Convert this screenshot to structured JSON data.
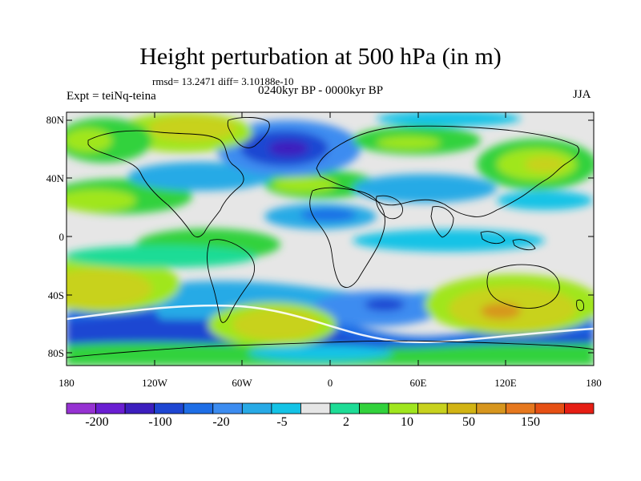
{
  "map": {
    "title": "Height perturbation at 500 hPa (in m)",
    "stats": "rmsd= 13.2471 diff= 3.10188e-10",
    "left_label": "Expt = teiNq-teina",
    "center_label": "0240kyr BP - 0000kyr BP",
    "right_label": "JJA",
    "lat_ticks": [
      "80N",
      "40N",
      "0",
      "40S",
      "80S"
    ],
    "lon_ticks": [
      "180",
      "120W",
      "60W",
      "0",
      "60E",
      "120E",
      "180"
    ]
  },
  "colorbar": {
    "labels": [
      "-200",
      "-100",
      "-20",
      "-5",
      "2",
      "10",
      "50",
      "150"
    ],
    "colors": [
      "#9632d2",
      "#6a1ed2",
      "#3c1ebe",
      "#1e46d2",
      "#1e6ee6",
      "#3c8cf0",
      "#28aae6",
      "#14c3e6",
      "#e6e6e6",
      "#1edc96",
      "#32d23c",
      "#a0e61e",
      "#c8d21e",
      "#d2b414",
      "#d7961e",
      "#e6781e",
      "#e65014",
      "#e61e14"
    ]
  },
  "colors": {
    "land_outline": "#000000",
    "background": "#ffffff"
  }
}
